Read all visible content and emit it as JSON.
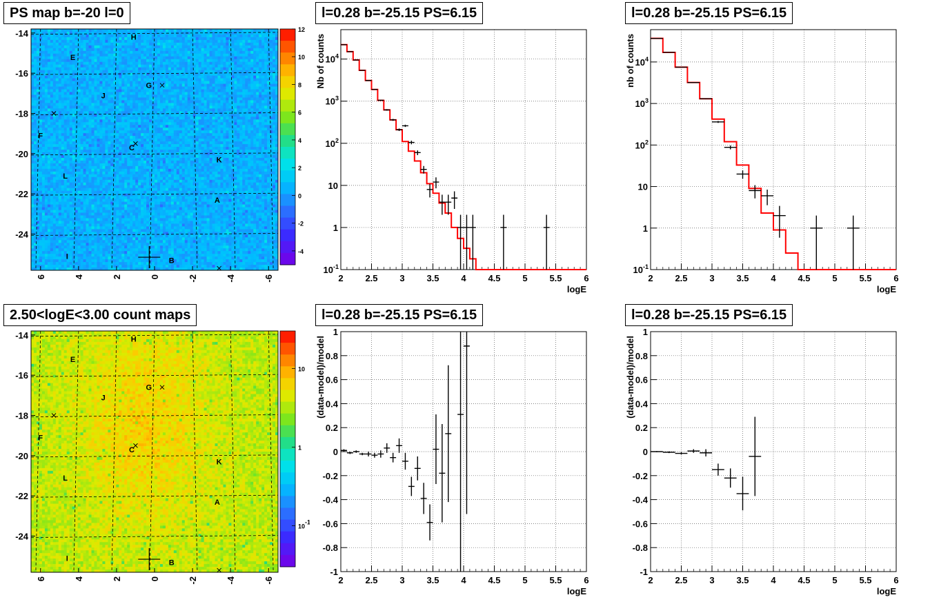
{
  "chart_data": [
    {
      "id": "map1",
      "type": "heatmap",
      "title": "PS map b=-20 l=0",
      "xlim": [
        6.5,
        -6.5
      ],
      "ylim": [
        -25.8,
        -13.8
      ],
      "xticks": [
        "6",
        "4",
        "2",
        "0",
        "-2",
        "-4",
        "-6"
      ],
      "yticks": [
        "-14",
        "-16",
        "-18",
        "-20",
        "-22",
        "-24"
      ],
      "colorbar_ticks": [
        "12",
        "10",
        "8",
        "6",
        "4",
        "2",
        "0",
        "-2",
        "-4"
      ],
      "colorbar_scale": "linear",
      "colorbar_range": [
        -5,
        12
      ],
      "dominant_level": 0.5,
      "grid": true,
      "sources": [
        {
          "label": "H",
          "l": 1.1,
          "b": -14.2
        },
        {
          "label": "E",
          "l": 4.3,
          "b": -15.2
        },
        {
          "label": "G",
          "l": 0.3,
          "b": -16.6
        },
        {
          "label": "J",
          "l": 2.7,
          "b": -17.1
        },
        {
          "label": "F",
          "l": 6.0,
          "b": -19.1
        },
        {
          "label": "C",
          "l": 1.2,
          "b": -19.7
        },
        {
          "label": "K",
          "l": -3.4,
          "b": -20.3
        },
        {
          "label": "L",
          "l": 4.7,
          "b": -21.1
        },
        {
          "label": "A",
          "l": -3.3,
          "b": -22.3
        },
        {
          "label": "I",
          "l": 4.6,
          "b": -25.1
        },
        {
          "label": "B",
          "l": -0.9,
          "b": -25.3
        }
      ],
      "markers": [
        {
          "l": -0.4,
          "b": -16.6,
          "kind": "x"
        },
        {
          "l": 5.3,
          "b": -18.0,
          "kind": "x"
        },
        {
          "l": 1.0,
          "b": -19.5,
          "kind": "x"
        },
        {
          "l": -3.4,
          "b": -25.7,
          "kind": "x"
        },
        {
          "l": 0.28,
          "b": -25.15,
          "kind": "plus"
        }
      ]
    },
    {
      "id": "spec1",
      "type": "line",
      "title": "l=0.28 b=-25.15 PS=6.15",
      "xlabel": "logE",
      "ylabel": "Nb of counts",
      "xlim": [
        2,
        6
      ],
      "ylim": [
        0.1,
        50000
      ],
      "yscale": "log",
      "xticks": [
        "2",
        "2.5",
        "3",
        "3.5",
        "4",
        "4.5",
        "5",
        "5.5",
        "6"
      ],
      "yticks": [
        {
          "v": 0.1,
          "label": "10",
          "sup": "-1"
        },
        {
          "v": 1,
          "label": "1"
        },
        {
          "v": 10,
          "label": "10"
        },
        {
          "v": 100,
          "label": "10",
          "sup": "2"
        },
        {
          "v": 1000,
          "label": "10",
          "sup": "3"
        },
        {
          "v": 10000,
          "label": "10",
          "sup": "4"
        }
      ],
      "grid": true,
      "model": {
        "edges": [
          2,
          2.1,
          2.2,
          2.3,
          2.4,
          2.5,
          2.6,
          2.7,
          2.8,
          2.9,
          3,
          3.1,
          3.2,
          3.3,
          3.4,
          3.5,
          3.6,
          3.7,
          3.8,
          3.9,
          4,
          4.1,
          4.2,
          4.3,
          6
        ],
        "values": [
          22000,
          15000,
          9500,
          5400,
          3100,
          1900,
          1050,
          620,
          360,
          210,
          110,
          65,
          38,
          20,
          11,
          6.5,
          3.8,
          2.2,
          1.0,
          0.55,
          0.32,
          0.18,
          0.1,
          0.1
        ]
      },
      "data": {
        "x": [
          2.05,
          2.15,
          2.25,
          2.35,
          2.45,
          2.55,
          2.65,
          2.75,
          2.85,
          2.95,
          3.05,
          3.15,
          3.25,
          3.35,
          3.45,
          3.55,
          3.65,
          3.75,
          3.85,
          3.95,
          4.05,
          4.15,
          4.65,
          5.35
        ],
        "xerr": [
          0.05,
          0.05,
          0.05,
          0.05,
          0.05,
          0.05,
          0.05,
          0.05,
          0.05,
          0.05,
          0.05,
          0.05,
          0.05,
          0.05,
          0.05,
          0.05,
          0.05,
          0.05,
          0.05,
          0.05,
          0.05,
          0.05,
          0.05,
          0.05
        ],
        "y": [
          22000,
          15000,
          9500,
          5400,
          3100,
          1900,
          1050,
          620,
          360,
          210,
          260,
          105,
          60,
          24,
          8,
          12,
          4,
          4,
          5,
          1,
          1,
          1,
          1,
          1
        ]
      }
    },
    {
      "id": "spec2",
      "type": "line",
      "title": "l=0.28 b=-25.15 PS=6.15",
      "xlabel": "logE",
      "ylabel": "nb of counts",
      "xlim": [
        2,
        6
      ],
      "ylim": [
        0.1,
        60000
      ],
      "yscale": "log",
      "xticks": [
        "2",
        "2.5",
        "3",
        "3.5",
        "4",
        "4.5",
        "5",
        "5.5",
        "6"
      ],
      "yticks": [
        {
          "v": 0.1,
          "label": "10",
          "sup": "-1"
        },
        {
          "v": 1,
          "label": "1"
        },
        {
          "v": 10,
          "label": "10"
        },
        {
          "v": 100,
          "label": "10",
          "sup": "2"
        },
        {
          "v": 1000,
          "label": "10",
          "sup": "3"
        },
        {
          "v": 10000,
          "label": "10",
          "sup": "4"
        }
      ],
      "grid": true,
      "model": {
        "edges": [
          2,
          2.2,
          2.4,
          2.6,
          2.8,
          3,
          3.2,
          3.4,
          3.6,
          3.8,
          4,
          4.2,
          4.4,
          4.6,
          6
        ],
        "values": [
          37000,
          17000,
          7500,
          3200,
          1300,
          420,
          120,
          33,
          9,
          2.3,
          0.9,
          0.25,
          0.1,
          0.1,
          0.1
        ]
      },
      "data": {
        "x": [
          2.1,
          2.3,
          2.5,
          2.7,
          2.9,
          3.1,
          3.3,
          3.5,
          3.7,
          3.9,
          4.1,
          4.7,
          5.3
        ],
        "xerr": [
          0.1,
          0.1,
          0.1,
          0.1,
          0.1,
          0.1,
          0.1,
          0.1,
          0.1,
          0.1,
          0.1,
          0.1,
          0.1
        ],
        "y": [
          37000,
          17000,
          7500,
          3200,
          1300,
          360,
          88,
          20,
          8,
          6,
          2,
          1,
          1
        ]
      }
    },
    {
      "id": "map2",
      "type": "heatmap",
      "title": "2.50<logE<3.00 count maps",
      "xlim": [
        6.5,
        -6.5
      ],
      "ylim": [
        -25.8,
        -13.8
      ],
      "xticks": [
        "6",
        "4",
        "2",
        "0",
        "-2",
        "-4",
        "-6"
      ],
      "yticks": [
        "-14",
        "-16",
        "-18",
        "-20",
        "-22",
        "-24"
      ],
      "colorbar_ticks": [
        {
          "label": "10",
          "v": 10
        },
        {
          "label": "1",
          "v": 1
        },
        {
          "label": "10",
          "sup": "-1",
          "v": 0.1
        }
      ],
      "colorbar_scale": "log",
      "colorbar_range": [
        0.03,
        30
      ],
      "dominant_level": 3.5,
      "grid": true,
      "sources": [
        {
          "label": "H",
          "l": 1.1,
          "b": -14.2
        },
        {
          "label": "E",
          "l": 4.3,
          "b": -15.2
        },
        {
          "label": "G",
          "l": 0.3,
          "b": -16.6
        },
        {
          "label": "J",
          "l": 2.7,
          "b": -17.1
        },
        {
          "label": "F",
          "l": 6.0,
          "b": -19.1
        },
        {
          "label": "C",
          "l": 1.2,
          "b": -19.7
        },
        {
          "label": "K",
          "l": -3.4,
          "b": -20.3
        },
        {
          "label": "L",
          "l": 4.7,
          "b": -21.1
        },
        {
          "label": "A",
          "l": -3.3,
          "b": -22.3
        },
        {
          "label": "I",
          "l": 4.6,
          "b": -25.1
        },
        {
          "label": "B",
          "l": -0.9,
          "b": -25.3
        }
      ],
      "markers": [
        {
          "l": -0.4,
          "b": -16.6,
          "kind": "x"
        },
        {
          "l": 5.3,
          "b": -18.0,
          "kind": "x"
        },
        {
          "l": 1.0,
          "b": -19.5,
          "kind": "x"
        },
        {
          "l": -3.4,
          "b": -25.7,
          "kind": "x"
        },
        {
          "l": 0.28,
          "b": -25.15,
          "kind": "plus"
        }
      ]
    },
    {
      "id": "res1",
      "type": "scatter",
      "title": "l=0.28 b=-25.15 PS=6.15",
      "xlabel": "logE",
      "ylabel": "(data-model)/model",
      "xlim": [
        2,
        6
      ],
      "ylim": [
        -1,
        1
      ],
      "xticks": [
        "2",
        "2.5",
        "3",
        "3.5",
        "4",
        "4.5",
        "5",
        "5.5",
        "6"
      ],
      "yticks": [
        "1",
        "0.8",
        "0.6",
        "0.4",
        "0.2",
        "0",
        "-0.2",
        "-0.4",
        "-0.6",
        "-0.8",
        "-1"
      ],
      "grid": true,
      "data": {
        "x": [
          2.05,
          2.15,
          2.25,
          2.35,
          2.45,
          2.55,
          2.65,
          2.75,
          2.85,
          2.95,
          3.05,
          3.15,
          3.25,
          3.35,
          3.45,
          3.55,
          3.65,
          3.75,
          3.95,
          4.05
        ],
        "xerr": [
          0.05,
          0.05,
          0.05,
          0.05,
          0.05,
          0.05,
          0.05,
          0.05,
          0.05,
          0.05,
          0.05,
          0.05,
          0.05,
          0.05,
          0.05,
          0.05,
          0.05,
          0.05,
          0.05,
          0.05
        ],
        "y": [
          0.01,
          -0.01,
          0.0,
          -0.02,
          -0.02,
          -0.03,
          -0.02,
          0.03,
          -0.05,
          0.05,
          -0.08,
          -0.29,
          -0.14,
          -0.39,
          -0.59,
          0.02,
          -0.18,
          0.15,
          0.31,
          0.88
        ],
        "yerr": [
          0.01,
          0.01,
          0.01,
          0.01,
          0.02,
          0.02,
          0.03,
          0.04,
          0.04,
          0.06,
          0.07,
          0.08,
          0.1,
          0.13,
          0.15,
          0.29,
          0.41,
          0.57,
          1.4,
          1.4
        ]
      }
    },
    {
      "id": "res2",
      "type": "scatter",
      "title": "l=0.28 b=-25.15 PS=6.15",
      "xlabel": "logE",
      "ylabel": "(data-model)/model",
      "xlim": [
        2,
        6
      ],
      "ylim": [
        -1,
        1
      ],
      "xticks": [
        "2",
        "2.5",
        "3",
        "3.5",
        "4",
        "4.5",
        "5",
        "5.5",
        "6"
      ],
      "yticks": [
        "1",
        "0.8",
        "0.6",
        "0.4",
        "0.2",
        "0",
        "-0.2",
        "-0.4",
        "-0.6",
        "-0.8",
        "-1"
      ],
      "grid": true,
      "data": {
        "x": [
          2.1,
          2.3,
          2.5,
          2.7,
          2.9,
          3.1,
          3.3,
          3.5,
          3.7
        ],
        "xerr": [
          0.1,
          0.1,
          0.1,
          0.1,
          0.1,
          0.1,
          0.1,
          0.1,
          0.1
        ],
        "y": [
          0.0,
          -0.005,
          -0.015,
          0.005,
          -0.01,
          -0.15,
          -0.22,
          -0.35,
          -0.04
        ],
        "yerr": [
          0.005,
          0.007,
          0.01,
          0.015,
          0.03,
          0.05,
          0.08,
          0.14,
          0.33
        ]
      }
    }
  ]
}
